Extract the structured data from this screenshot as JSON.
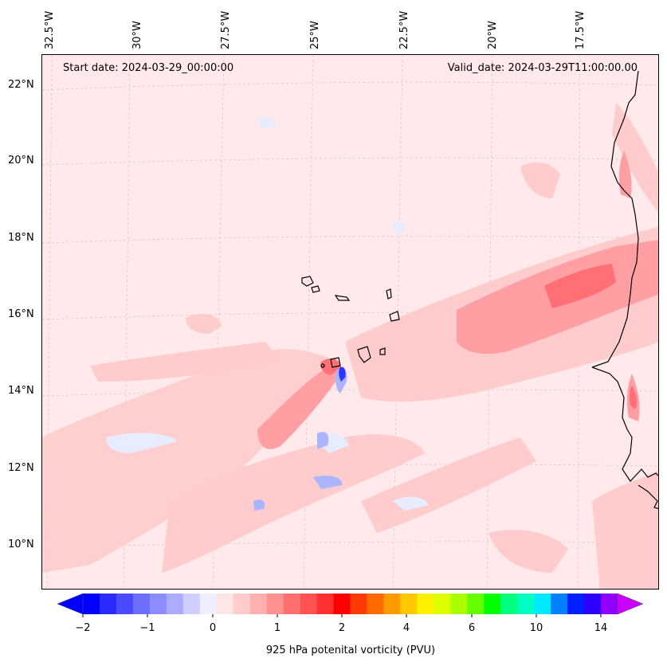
{
  "header": {
    "start_date": "Start date: 2024-03-29_00:00:00",
    "valid_date": "Valid_date: 2024-03-29T11:00:00.00"
  },
  "map": {
    "lon_labels": [
      "32.5°W",
      "30°W",
      "27.5°W",
      "25°W",
      "22.5°W",
      "20°W",
      "17.5°W"
    ],
    "lat_labels": [
      "22°N",
      "20°N",
      "18°N",
      "16°N",
      "14°N",
      "12°N",
      "10°N"
    ],
    "extent": {
      "lon": [
        -33.0,
        -15.2
      ],
      "lat": [
        8.8,
        22.8
      ]
    },
    "field": "925 hPa potential vorticity",
    "colors": {
      "background_field": "#ffe9ea",
      "positive_light": "#ffcccd",
      "positive_mid": "#ff9fa3",
      "positive_strong": "#ff6f74",
      "negative_light": "#e8ecff",
      "negative_strong": "#2a35ff",
      "coastline": "#000000"
    }
  },
  "colorbar": {
    "ticks": [
      "−2",
      "−1",
      "0",
      "1",
      "2",
      "4",
      "6",
      "10",
      "14"
    ],
    "label": "925 hPa potenital vorticity (PVU)",
    "colors": [
      "#0000ff",
      "#2a2aff",
      "#4a4aff",
      "#6f6fff",
      "#8c8cff",
      "#ababff",
      "#cfcfff",
      "#eeeeff",
      "#ffe6e6",
      "#ffcccc",
      "#ffb0b0",
      "#ff9090",
      "#ff7070",
      "#ff5252",
      "#ff3030",
      "#ff0000",
      "#ff3a00",
      "#ff6a00",
      "#ff9a00",
      "#ffc800",
      "#fff000",
      "#ddff00",
      "#aaff00",
      "#66ff00",
      "#00ff00",
      "#00ff7a",
      "#00ffc0",
      "#00e8ff",
      "#0080ff",
      "#0020ff",
      "#3000ff",
      "#9000ff"
    ],
    "extend_min_color": "#0000ff",
    "extend_max_color": "#cc00ff"
  }
}
